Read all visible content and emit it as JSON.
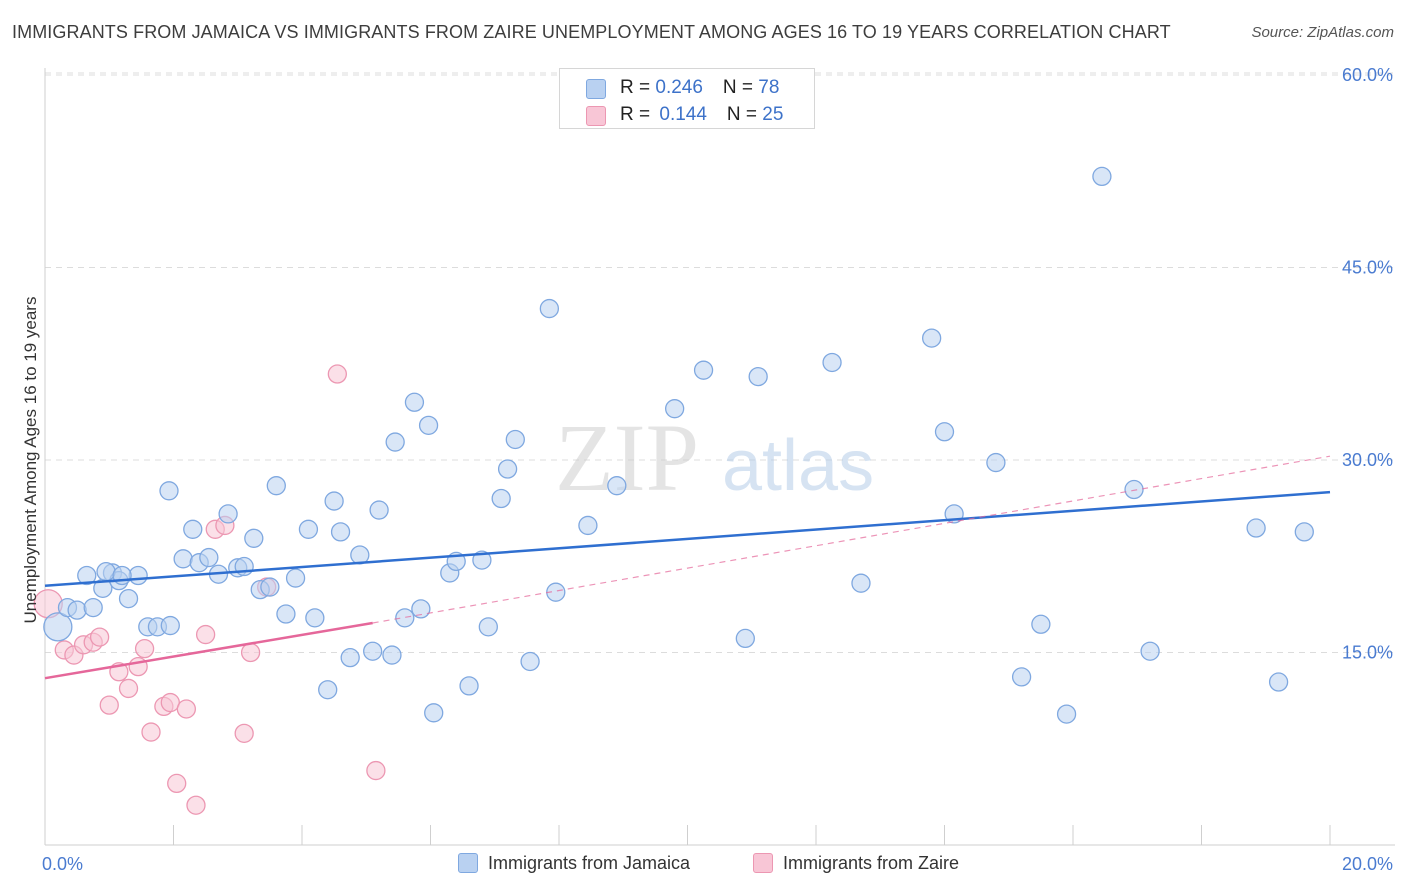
{
  "title": "IMMIGRANTS FROM JAMAICA VS IMMIGRANTS FROM ZAIRE UNEMPLOYMENT AMONG AGES 16 TO 19 YEARS CORRELATION CHART",
  "source": "Source: ZipAtlas.com",
  "watermark": {
    "zip": "ZIP",
    "atlas": "atlas"
  },
  "colors": {
    "jamaica_fill": "#b9d1f1",
    "jamaica_stroke": "#7fa8e0",
    "jamaica_line": "#2f6fd0",
    "zaire_fill": "#f8c6d6",
    "zaire_stroke": "#ec97b2",
    "zaire_line": "#e5679a",
    "axis_text": "#4a7bd0",
    "grid": "#dcdcdc"
  },
  "legend": {
    "rows": [
      {
        "r_label": "R = ",
        "r_value": "0.246",
        "n_label": "N = ",
        "n_value": "78"
      },
      {
        "r_label": "R = ",
        "r_value": "0.144",
        "n_label": "N = ",
        "n_value": "25"
      }
    ]
  },
  "series_labels": {
    "jamaica": "Immigrants from Jamaica",
    "zaire": "Immigrants from Zaire"
  },
  "chart_data": {
    "type": "scatter",
    "title": "IMMIGRANTS FROM JAMAICA VS IMMIGRANTS FROM ZAIRE UNEMPLOYMENT AMONG AGES 16 TO 19 YEARS CORRELATION CHART",
    "xlabel": "",
    "ylabel": "Unemployment Among Ages 16 to 19 years",
    "xlim": [
      0,
      20
    ],
    "ylim": [
      0,
      60
    ],
    "x_tick_labels": [
      "0.0%",
      "20.0%"
    ],
    "y_ticks": [
      15,
      30,
      45,
      60
    ],
    "y_tick_labels": [
      "15.0%",
      "30.0%",
      "45.0%",
      "60.0%"
    ],
    "grid": true,
    "legend_position": "top-center",
    "series": [
      {
        "name": "Immigrants from Jamaica",
        "R": 0.246,
        "N": 78,
        "trend": {
          "x": [
            0,
            20
          ],
          "y": [
            20.2,
            27.5
          ],
          "style": "solid"
        },
        "points": [
          {
            "x": 0.2,
            "y": 17.0,
            "big": true
          },
          {
            "x": 0.35,
            "y": 18.5
          },
          {
            "x": 0.5,
            "y": 18.3
          },
          {
            "x": 0.65,
            "y": 21.0
          },
          {
            "x": 0.75,
            "y": 18.5
          },
          {
            "x": 0.9,
            "y": 20.0
          },
          {
            "x": 1.05,
            "y": 21.2
          },
          {
            "x": 1.15,
            "y": 20.6
          },
          {
            "x": 1.3,
            "y": 19.2
          },
          {
            "x": 1.45,
            "y": 21.0
          },
          {
            "x": 1.6,
            "y": 17.0
          },
          {
            "x": 1.75,
            "y": 17.0
          },
          {
            "x": 1.95,
            "y": 17.1
          },
          {
            "x": 1.93,
            "y": 27.6
          },
          {
            "x": 2.15,
            "y": 22.3
          },
          {
            "x": 2.3,
            "y": 24.6
          },
          {
            "x": 2.4,
            "y": 22.0
          },
          {
            "x": 2.55,
            "y": 22.4
          },
          {
            "x": 2.7,
            "y": 21.1
          },
          {
            "x": 2.85,
            "y": 25.8
          },
          {
            "x": 3.0,
            "y": 21.6
          },
          {
            "x": 3.1,
            "y": 21.7
          },
          {
            "x": 3.25,
            "y": 23.9
          },
          {
            "x": 3.35,
            "y": 19.9
          },
          {
            "x": 3.5,
            "y": 20.1
          },
          {
            "x": 3.6,
            "y": 28.0
          },
          {
            "x": 3.75,
            "y": 18.0
          },
          {
            "x": 3.9,
            "y": 20.8
          },
          {
            "x": 4.1,
            "y": 24.6
          },
          {
            "x": 4.2,
            "y": 17.7
          },
          {
            "x": 4.4,
            "y": 12.1
          },
          {
            "x": 4.5,
            "y": 26.8
          },
          {
            "x": 4.6,
            "y": 24.4
          },
          {
            "x": 4.75,
            "y": 14.6
          },
          {
            "x": 4.9,
            "y": 22.6
          },
          {
            "x": 5.1,
            "y": 15.1
          },
          {
            "x": 5.2,
            "y": 26.1
          },
          {
            "x": 5.4,
            "y": 14.8
          },
          {
            "x": 5.45,
            "y": 31.4
          },
          {
            "x": 5.6,
            "y": 17.7
          },
          {
            "x": 5.75,
            "y": 34.5
          },
          {
            "x": 5.85,
            "y": 18.4
          },
          {
            "x": 5.97,
            "y": 32.7
          },
          {
            "x": 6.05,
            "y": 10.3
          },
          {
            "x": 6.3,
            "y": 21.2
          },
          {
            "x": 6.4,
            "y": 22.1
          },
          {
            "x": 6.6,
            "y": 12.4
          },
          {
            "x": 6.8,
            "y": 22.2
          },
          {
            "x": 6.9,
            "y": 17.0
          },
          {
            "x": 7.1,
            "y": 27.0
          },
          {
            "x": 7.2,
            "y": 29.3
          },
          {
            "x": 7.32,
            "y": 31.6
          },
          {
            "x": 7.55,
            "y": 14.3
          },
          {
            "x": 7.85,
            "y": 41.8
          },
          {
            "x": 7.95,
            "y": 19.7
          },
          {
            "x": 8.45,
            "y": 24.9
          },
          {
            "x": 8.9,
            "y": 28.0
          },
          {
            "x": 9.8,
            "y": 34.0
          },
          {
            "x": 10.25,
            "y": 37.0
          },
          {
            "x": 10.9,
            "y": 16.1
          },
          {
            "x": 11.1,
            "y": 36.5
          },
          {
            "x": 12.25,
            "y": 37.6
          },
          {
            "x": 12.7,
            "y": 20.4
          },
          {
            "x": 13.8,
            "y": 39.5
          },
          {
            "x": 14.0,
            "y": 32.2
          },
          {
            "x": 14.15,
            "y": 25.8
          },
          {
            "x": 14.8,
            "y": 29.8
          },
          {
            "x": 15.2,
            "y": 13.1
          },
          {
            "x": 15.5,
            "y": 17.2
          },
          {
            "x": 15.9,
            "y": 10.2
          },
          {
            "x": 16.45,
            "y": 52.1
          },
          {
            "x": 16.95,
            "y": 27.7
          },
          {
            "x": 17.2,
            "y": 15.1
          },
          {
            "x": 18.85,
            "y": 24.7
          },
          {
            "x": 19.2,
            "y": 12.7
          },
          {
            "x": 19.6,
            "y": 24.4
          },
          {
            "x": 0.95,
            "y": 21.3
          },
          {
            "x": 1.2,
            "y": 21.0
          }
        ]
      },
      {
        "name": "Immigrants from Zaire",
        "R": 0.144,
        "N": 25,
        "trend": {
          "x": [
            0,
            5.1
          ],
          "y": [
            13.0,
            17.3
          ],
          "style": "solid",
          "extended_to": {
            "x": 20,
            "y": 30.3,
            "style": "dashed"
          }
        },
        "points": [
          {
            "x": 0.05,
            "y": 18.8,
            "big": true
          },
          {
            "x": 0.3,
            "y": 15.2
          },
          {
            "x": 0.45,
            "y": 14.8
          },
          {
            "x": 0.6,
            "y": 15.6
          },
          {
            "x": 0.75,
            "y": 15.8
          },
          {
            "x": 0.85,
            "y": 16.2
          },
          {
            "x": 1.0,
            "y": 10.9
          },
          {
            "x": 1.15,
            "y": 13.5
          },
          {
            "x": 1.3,
            "y": 12.2
          },
          {
            "x": 1.45,
            "y": 13.9
          },
          {
            "x": 1.55,
            "y": 15.3
          },
          {
            "x": 1.65,
            "y": 8.8
          },
          {
            "x": 1.85,
            "y": 10.8
          },
          {
            "x": 1.95,
            "y": 11.1
          },
          {
            "x": 2.05,
            "y": 4.8
          },
          {
            "x": 2.2,
            "y": 10.6
          },
          {
            "x": 2.35,
            "y": 3.1
          },
          {
            "x": 2.5,
            "y": 16.4
          },
          {
            "x": 2.65,
            "y": 24.6
          },
          {
            "x": 2.8,
            "y": 24.9
          },
          {
            "x": 3.1,
            "y": 8.7
          },
          {
            "x": 3.2,
            "y": 15.0
          },
          {
            "x": 3.45,
            "y": 20.1
          },
          {
            "x": 4.55,
            "y": 36.7
          },
          {
            "x": 5.15,
            "y": 5.8
          }
        ]
      }
    ]
  }
}
